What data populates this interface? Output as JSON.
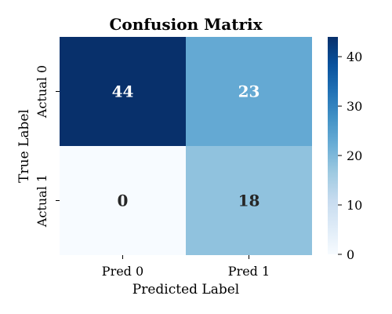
{
  "chart_data": {
    "type": "heatmap",
    "title": "Confusion Matrix",
    "xlabel": "Predicted Label",
    "ylabel": "True Label",
    "x_categories": [
      "Pred 0",
      "Pred 1"
    ],
    "y_categories": [
      "Actual 0",
      "Actual 1"
    ],
    "values": [
      [
        44,
        23
      ],
      [
        0,
        18
      ]
    ],
    "colorbar": {
      "colormap": "Blues",
      "min": 0,
      "max": 44,
      "ticks": [
        0,
        10,
        20,
        30,
        40
      ]
    },
    "annotations": true,
    "annotation_color_light": "#ffffff",
    "annotation_color_dark": "#262626"
  }
}
